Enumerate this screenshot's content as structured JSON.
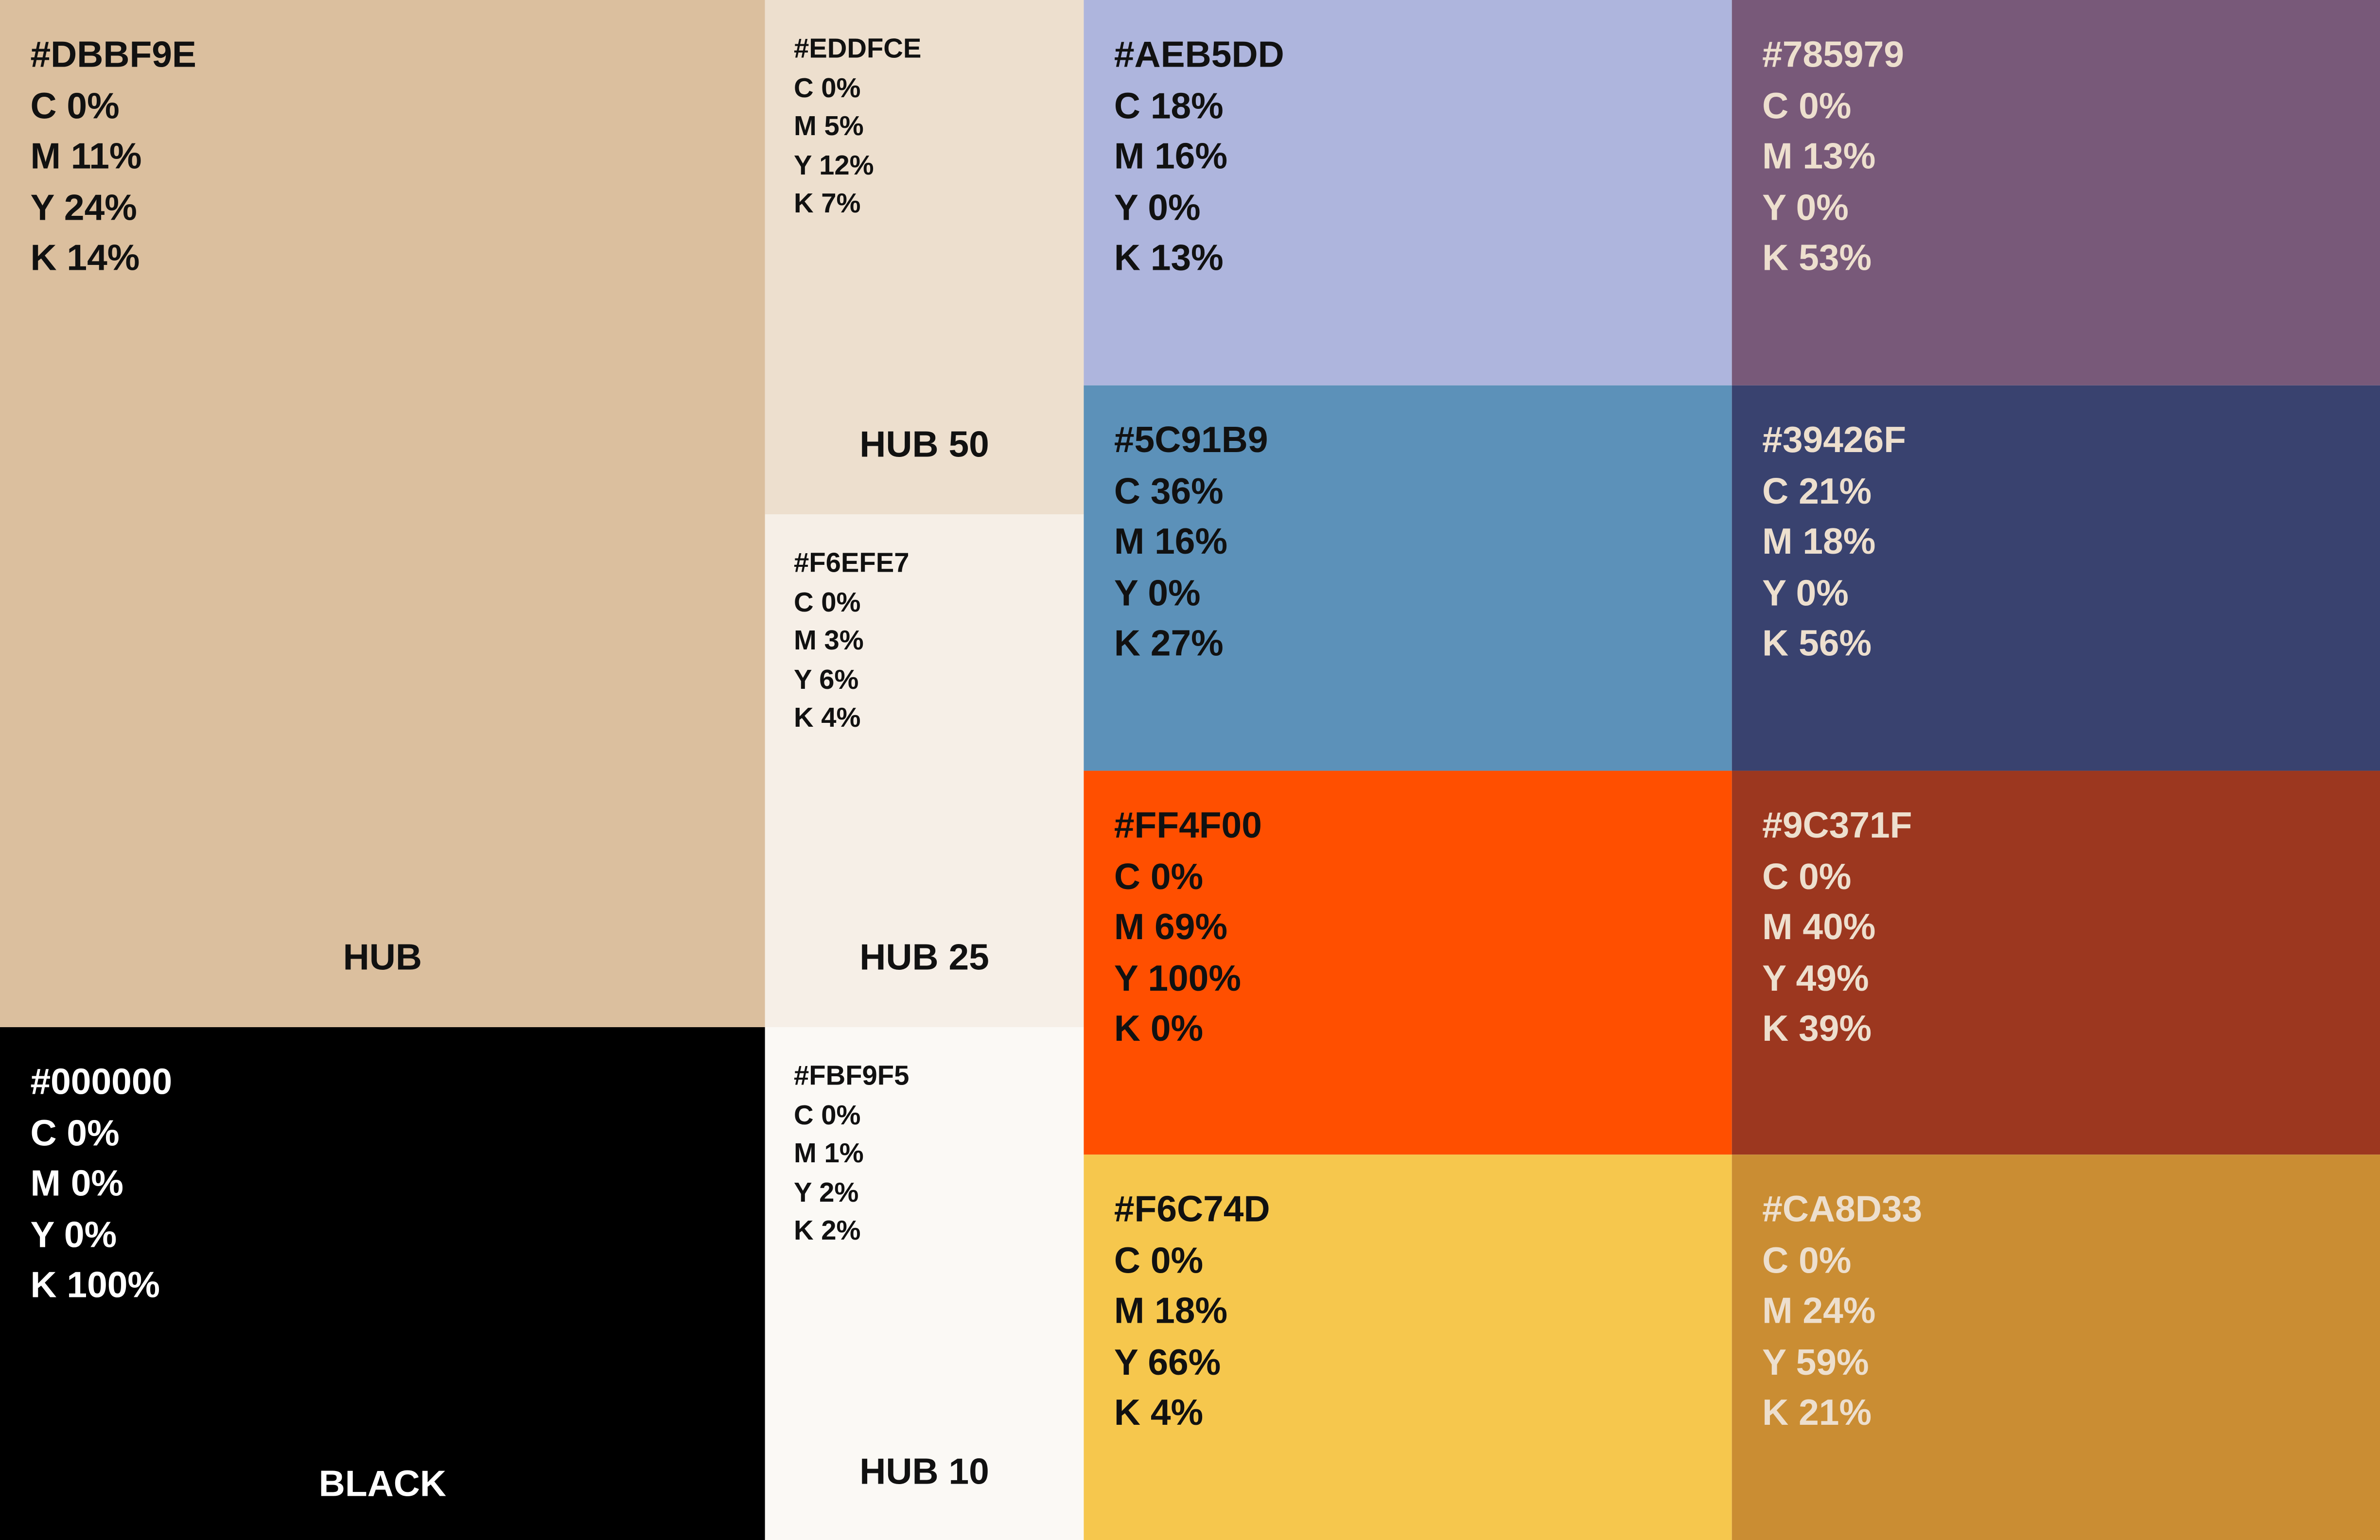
{
  "swatches": [
    {
      "hex": "#DBBF9E",
      "lines": [
        "#DBBF9E",
        "C 0%",
        "M 11%",
        "Y 24%",
        "K 14%"
      ],
      "name": "HUB",
      "text_color": "#111111"
    },
    {
      "hex": "#000000",
      "lines": [
        "#000000",
        "C 0%",
        "M 0%",
        "Y 0%",
        "K 100%"
      ],
      "name": "BLACK",
      "text_color": "#ffffff"
    },
    {
      "hex": "#EDDFCE",
      "lines": [
        "#EDDFCE",
        "C 0%",
        "M 5%",
        "Y 12%",
        "K 7%"
      ],
      "name": "HUB 50",
      "text_color": "#111111"
    },
    {
      "hex": "#F6EFE7",
      "lines": [
        "#F6EFE7",
        "C 0%",
        "M 3%",
        "Y 6%",
        "K 4%"
      ],
      "name": "HUB 25",
      "text_color": "#111111"
    },
    {
      "hex": "#FBF9F5",
      "lines": [
        "#FBF9F5",
        "C 0%",
        "M 1%",
        "Y 2%",
        "K 2%"
      ],
      "name": "HUB 10",
      "text_color": "#111111"
    },
    {
      "hex": "#AEB5DD",
      "lines": [
        "#AEB5DD",
        "C 18%",
        "M 16%",
        "Y 0%",
        "K 13%"
      ],
      "text_color": "#111111"
    },
    {
      "hex": "#5C91B9",
      "lines": [
        "#5C91B9",
        "C 36%",
        "M 16%",
        "Y 0%",
        "K 27%"
      ],
      "text_color": "#111111"
    },
    {
      "hex": "#FF4F00",
      "lines": [
        "#FF4F00",
        "C 0%",
        "M 69%",
        "Y 100%",
        "K 0%"
      ],
      "text_color": "#111111"
    },
    {
      "hex": "#F6C74D",
      "lines": [
        "#F6C74D",
        "C 0%",
        "M 18%",
        "Y 66%",
        "K 4%"
      ],
      "text_color": "#111111"
    },
    {
      "hex": "#785979",
      "lines": [
        "#785979",
        "C 0%",
        "M 13%",
        "Y 0%",
        "K 53%"
      ],
      "text_color": "#EDDFCE"
    },
    {
      "hex": "#39426F",
      "lines": [
        "#39426F",
        "C 21%",
        "M 18%",
        "Y 0%",
        "K 56%"
      ],
      "text_color": "#EDDFCE"
    },
    {
      "hex": "#9C371F",
      "lines": [
        "#9C371F",
        "C 0%",
        "M 40%",
        "Y 49%",
        "K 39%"
      ],
      "text_color": "#EDDFCE"
    },
    {
      "hex": "#CA8D33",
      "lines": [
        "#CA8D33",
        "C 0%",
        "M 24%",
        "Y 59%",
        "K 21%"
      ],
      "text_color": "#EDDFCE"
    }
  ]
}
